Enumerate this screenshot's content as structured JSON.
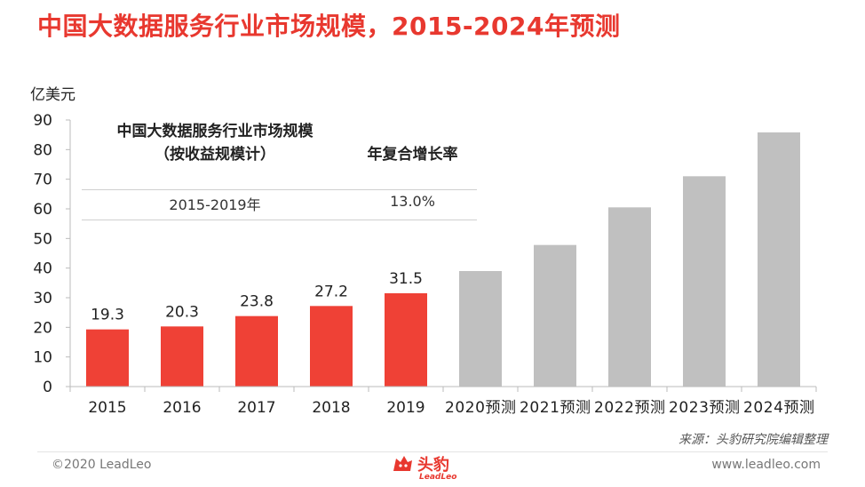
{
  "title": "中国大数据服务行业市场规模，2015-2024年预测",
  "unit_label": "亿美元",
  "cagr_table": {
    "header_left_line1": "中国大数据服务行业市场规模",
    "header_left_line2": "（按收益规模计）",
    "header_right": "年复合增长率",
    "period": "2015-2019年",
    "rate": "13.0%"
  },
  "source": "来源：头豹研究院编辑整理",
  "copyright": "©2020 LeadLeo",
  "website": "www.leadleo.com",
  "logo": {
    "name": "头豹",
    "sub": "LeadLeo",
    "icon": "leopard-head-icon"
  },
  "colors": {
    "actual": "#ef4136",
    "forecast": "#c0c0c0",
    "title": "#e8382f"
  },
  "chart_data": {
    "type": "bar",
    "categories": [
      "2015",
      "2016",
      "2017",
      "2018",
      "2019",
      "2020预测",
      "2021预测",
      "2022预测",
      "2023预测",
      "2024预测"
    ],
    "values": [
      19.3,
      20.3,
      23.8,
      27.2,
      31.5,
      39.0,
      47.8,
      60.5,
      71.0,
      85.8
    ],
    "value_labels": [
      "19.3",
      "20.3",
      "23.8",
      "27.2",
      "31.5",
      "",
      "",
      "",
      "",
      ""
    ],
    "is_forecast": [
      false,
      false,
      false,
      false,
      false,
      true,
      true,
      true,
      true,
      true
    ],
    "ylim": [
      0,
      90
    ],
    "yticks": [
      "0",
      "10",
      "20",
      "30",
      "40",
      "50",
      "60",
      "70",
      "80",
      "90"
    ],
    "ylabel": "亿美元",
    "grid": false
  }
}
